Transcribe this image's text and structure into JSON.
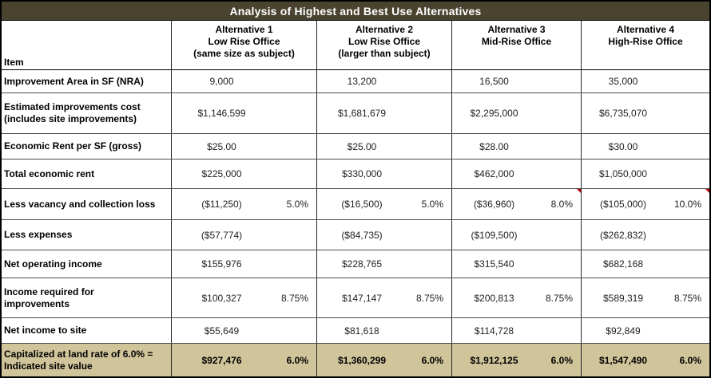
{
  "title": "Analysis of Highest and Best Use Alternatives",
  "colors": {
    "title_bg": "#494330",
    "title_text": "#ffffff",
    "total_row_bg": "#d0c49a",
    "comment_marker": "#c00000"
  },
  "header": {
    "item_label": "Item",
    "alternatives": [
      "Alternative 1\nLow Rise Office\n(same size as subject)",
      "Alternative 2\nLow Rise Office\n(larger than subject)",
      "Alternative 3\nMid-Rise Office",
      "Alternative 4\nHigh-Rise Office"
    ]
  },
  "rows": [
    {
      "label": "Improvement Area in SF (NRA)",
      "cells": [
        {
          "v": "9,000",
          "p": ""
        },
        {
          "v": "13,200",
          "p": ""
        },
        {
          "v": "16,500",
          "p": ""
        },
        {
          "v": "35,000",
          "p": ""
        }
      ]
    },
    {
      "label": "Estimated improvements cost\n(includes site improvements)",
      "cells": [
        {
          "v": "$1,146,599",
          "p": ""
        },
        {
          "v": "$1,681,679",
          "p": ""
        },
        {
          "v": "$2,295,000",
          "p": ""
        },
        {
          "v": "$6,735,070",
          "p": ""
        }
      ]
    },
    {
      "label": "Economic Rent per SF (gross)",
      "cells": [
        {
          "v": "$25.00",
          "p": ""
        },
        {
          "v": "$25.00",
          "p": ""
        },
        {
          "v": "$28.00",
          "p": ""
        },
        {
          "v": "$30.00",
          "p": ""
        }
      ]
    },
    {
      "label": "Total economic rent",
      "cells": [
        {
          "v": "$225,000",
          "p": ""
        },
        {
          "v": "$330,000",
          "p": ""
        },
        {
          "v": "$462,000",
          "p": ""
        },
        {
          "v": "$1,050,000",
          "p": ""
        }
      ]
    },
    {
      "label": "Less vacancy and collection loss",
      "cells": [
        {
          "v": "($11,250)",
          "p": "5.0%"
        },
        {
          "v": "($16,500)",
          "p": "5.0%"
        },
        {
          "v": "($36,960)",
          "p": "8.0%"
        },
        {
          "v": "($105,000)",
          "p": "10.0%"
        }
      ]
    },
    {
      "label": "Less expenses",
      "cells": [
        {
          "v": "($57,774)",
          "p": ""
        },
        {
          "v": "($84,735)",
          "p": ""
        },
        {
          "v": "($109,500)",
          "p": ""
        },
        {
          "v": "($262,832)",
          "p": ""
        }
      ]
    },
    {
      "label": "Net operating income",
      "cells": [
        {
          "v": "$155,976",
          "p": ""
        },
        {
          "v": "$228,765",
          "p": ""
        },
        {
          "v": "$315,540",
          "p": ""
        },
        {
          "v": "$682,168",
          "p": ""
        }
      ]
    },
    {
      "label": "Income required for\nimprovements",
      "cells": [
        {
          "v": "$100,327",
          "p": "8.75%"
        },
        {
          "v": "$147,147",
          "p": "8.75%"
        },
        {
          "v": "$200,813",
          "p": "8.75%"
        },
        {
          "v": "$589,319",
          "p": "8.75%"
        }
      ]
    },
    {
      "label": "Net income to site",
      "cells": [
        {
          "v": "$55,649",
          "p": ""
        },
        {
          "v": "$81,618",
          "p": ""
        },
        {
          "v": "$114,728",
          "p": ""
        },
        {
          "v": "$92,849",
          "p": ""
        }
      ]
    },
    {
      "label": "Capitalized at land rate of 6.0% =\nIndicated site value",
      "cells": [
        {
          "v": "$927,476",
          "p": "6.0%"
        },
        {
          "v": "$1,360,299",
          "p": "6.0%"
        },
        {
          "v": "$1,912,125",
          "p": "6.0%"
        },
        {
          "v": "$1,547,490",
          "p": "6.0%"
        }
      ]
    }
  ]
}
